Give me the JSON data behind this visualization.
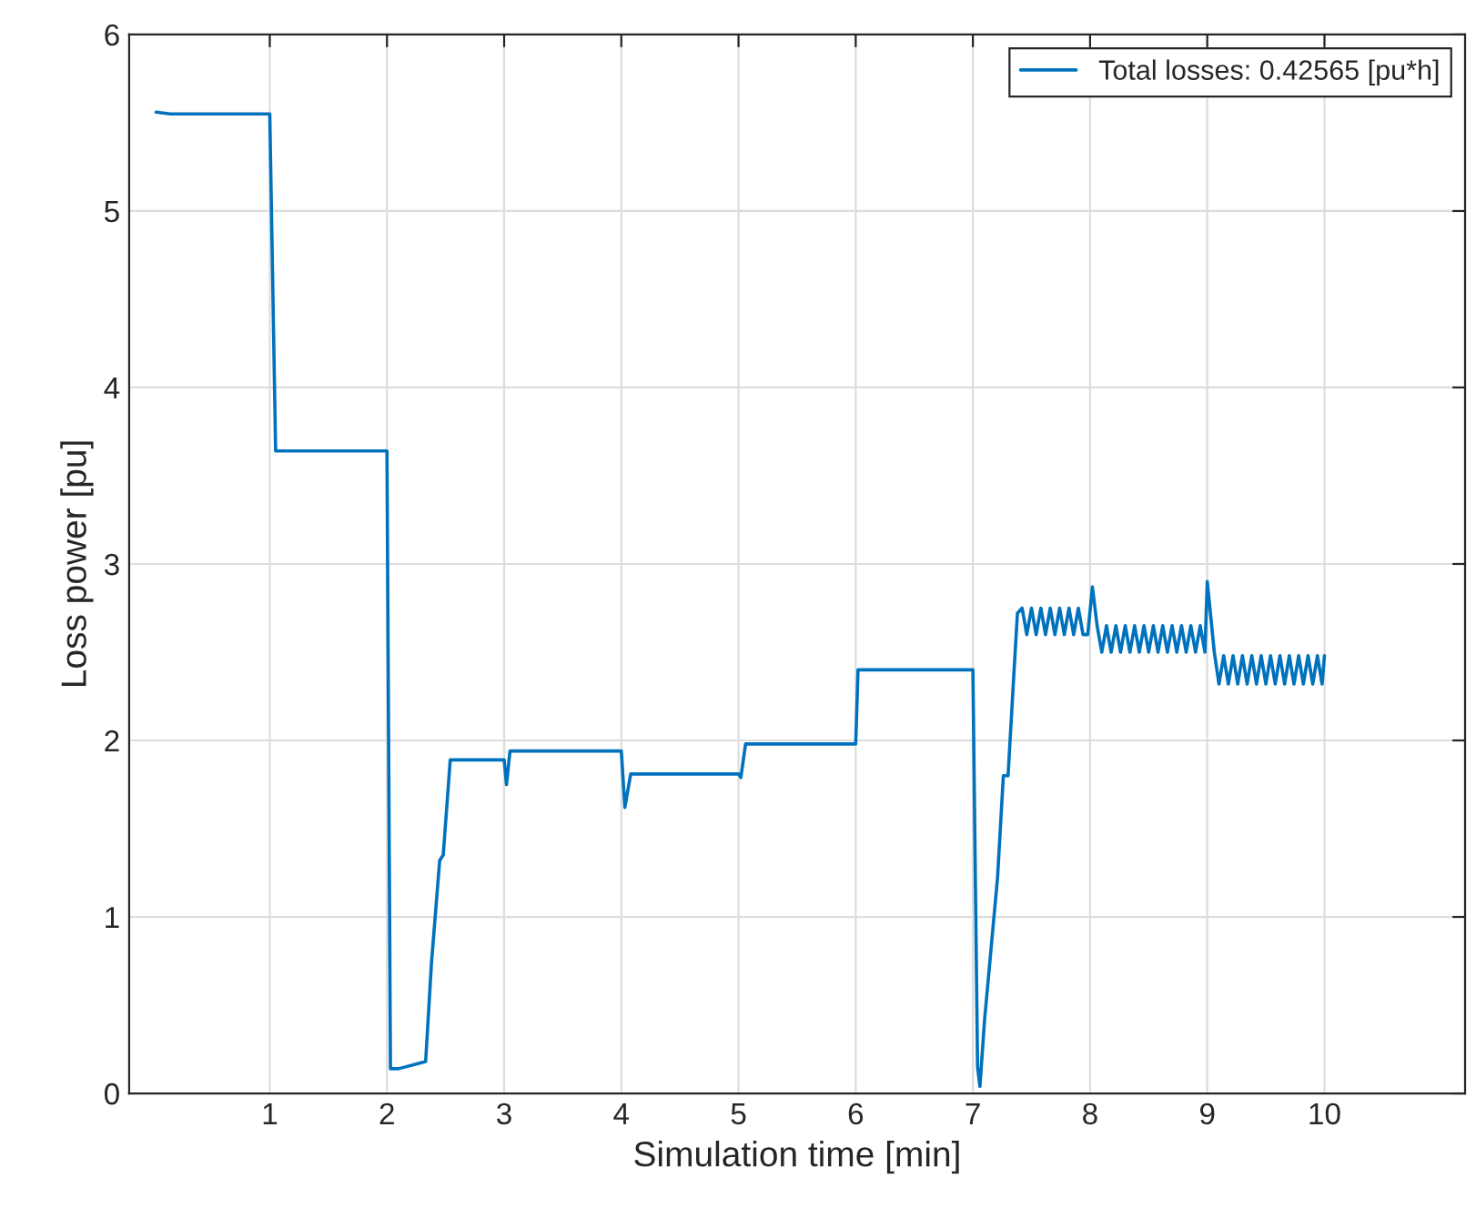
{
  "chart_data": {
    "type": "line",
    "xlabel": "Simulation time [min]",
    "ylabel": "Loss power [pu]",
    "xlim": [
      -0.2,
      11.2
    ],
    "xticks": [
      1,
      2,
      3,
      4,
      5,
      6,
      7,
      8,
      9,
      10
    ],
    "ylim": [
      0,
      6
    ],
    "yticks": [
      0,
      1,
      2,
      3,
      4,
      5,
      6
    ],
    "grid": true,
    "legend": "top right",
    "series": [
      {
        "name": "Total losses: 0.42565 [pu*h]",
        "color": "#0072bd",
        "x": [
          0.03,
          0.15,
          1.0,
          1.05,
          2.0,
          2.03,
          2.1,
          2.33,
          2.38,
          2.45,
          2.48,
          2.54,
          3.0,
          3.02,
          3.05,
          4.0,
          4.03,
          4.08,
          5.0,
          5.02,
          5.06,
          6.0,
          6.02,
          7.0,
          7.04,
          7.06,
          7.1,
          7.21,
          7.26,
          7.3,
          7.35,
          7.38,
          7.42,
          7.46,
          7.5,
          7.54,
          7.58,
          7.62,
          7.66,
          7.7,
          7.74,
          7.78,
          7.82,
          7.86,
          7.9,
          7.94,
          7.98,
          8.02,
          8.06,
          8.1,
          8.14,
          8.18,
          8.22,
          8.26,
          8.3,
          8.34,
          8.38,
          8.42,
          8.46,
          8.5,
          8.54,
          8.58,
          8.62,
          8.66,
          8.7,
          8.74,
          8.78,
          8.82,
          8.86,
          8.9,
          8.94,
          8.98,
          9.0,
          9.06,
          9.1,
          9.14,
          9.18,
          9.22,
          9.26,
          9.3,
          9.34,
          9.38,
          9.42,
          9.46,
          9.5,
          9.54,
          9.58,
          9.62,
          9.66,
          9.7,
          9.74,
          9.78,
          9.82,
          9.86,
          9.9,
          9.94,
          9.98,
          10.0
        ],
        "values": [
          5.56,
          5.55,
          5.55,
          3.64,
          3.64,
          0.14,
          0.14,
          0.18,
          0.74,
          1.32,
          1.35,
          1.89,
          1.89,
          1.75,
          1.94,
          1.94,
          1.62,
          1.81,
          1.81,
          1.79,
          1.98,
          1.98,
          2.4,
          2.4,
          0.15,
          0.04,
          0.42,
          1.22,
          1.8,
          1.8,
          2.38,
          2.72,
          2.75,
          2.6,
          2.75,
          2.6,
          2.75,
          2.6,
          2.75,
          2.6,
          2.75,
          2.6,
          2.75,
          2.6,
          2.75,
          2.6,
          2.6,
          2.87,
          2.65,
          2.5,
          2.65,
          2.5,
          2.65,
          2.5,
          2.65,
          2.5,
          2.65,
          2.5,
          2.65,
          2.5,
          2.65,
          2.5,
          2.65,
          2.5,
          2.65,
          2.5,
          2.65,
          2.5,
          2.65,
          2.5,
          2.65,
          2.5,
          2.9,
          2.5,
          2.32,
          2.48,
          2.32,
          2.48,
          2.32,
          2.48,
          2.32,
          2.48,
          2.32,
          2.48,
          2.32,
          2.48,
          2.32,
          2.48,
          2.32,
          2.48,
          2.32,
          2.48,
          2.32,
          2.48,
          2.32,
          2.48,
          2.32,
          2.48
        ]
      }
    ]
  }
}
